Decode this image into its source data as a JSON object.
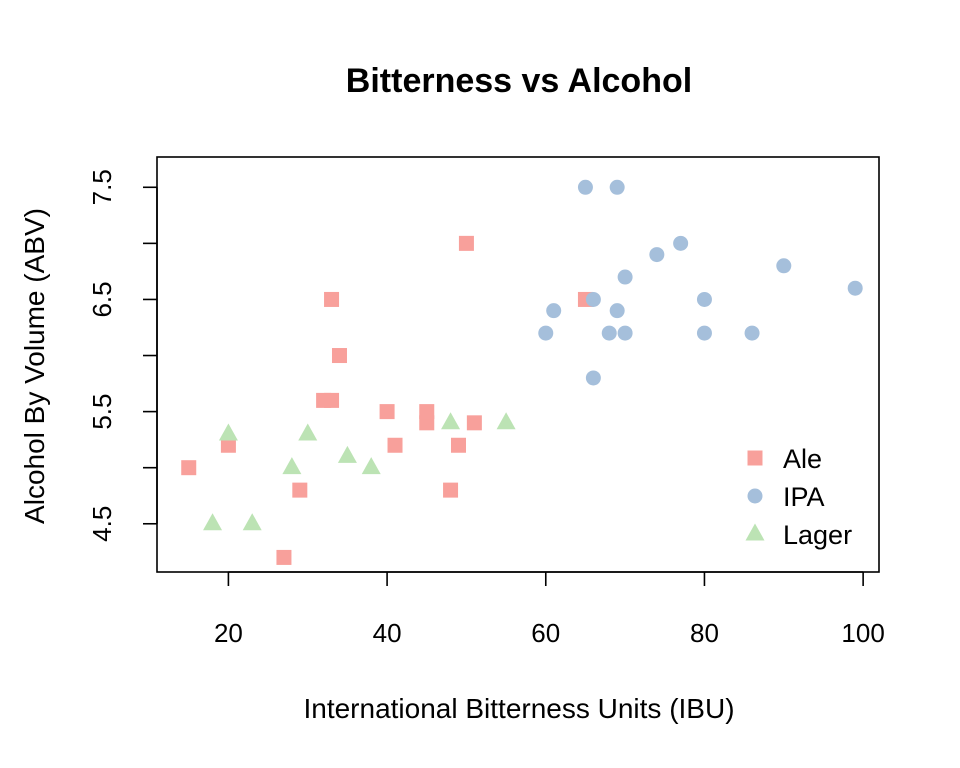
{
  "chart_data": {
    "type": "scatter",
    "title": "Bitterness vs Alcohol",
    "xlabel": "International Bitterness Units (IBU)",
    "ylabel": "Alcohol By Volume (ABV)",
    "xlim": [
      11,
      102
    ],
    "ylim": [
      4.07,
      7.77
    ],
    "x_ticks": [
      20,
      40,
      60,
      80,
      100
    ],
    "y_ticks": [
      4.5,
      5.0,
      5.5,
      6.0,
      6.5,
      7.0,
      7.5
    ],
    "y_tick_labels": [
      "4.5",
      "",
      "5.5",
      "",
      "6.5",
      "",
      "7.5"
    ],
    "grid": false,
    "legend_position": "bottom-right",
    "series": [
      {
        "name": "Ale",
        "marker": "square",
        "color": "#F8A09B",
        "points": [
          {
            "x": 15,
            "y": 5.0
          },
          {
            "x": 20,
            "y": 5.2
          },
          {
            "x": 27,
            "y": 4.2
          },
          {
            "x": 29,
            "y": 4.8
          },
          {
            "x": 32,
            "y": 5.6
          },
          {
            "x": 33,
            "y": 5.6
          },
          {
            "x": 33,
            "y": 6.5
          },
          {
            "x": 34,
            "y": 6.0
          },
          {
            "x": 40,
            "y": 5.5
          },
          {
            "x": 41,
            "y": 5.2
          },
          {
            "x": 45,
            "y": 5.4
          },
          {
            "x": 45,
            "y": 5.5
          },
          {
            "x": 48,
            "y": 4.8
          },
          {
            "x": 49,
            "y": 5.2
          },
          {
            "x": 50,
            "y": 7.0
          },
          {
            "x": 51,
            "y": 5.4
          },
          {
            "x": 65,
            "y": 6.5
          }
        ]
      },
      {
        "name": "IPA",
        "marker": "circle",
        "color": "#A5BFDB",
        "points": [
          {
            "x": 60,
            "y": 6.2
          },
          {
            "x": 61,
            "y": 6.4
          },
          {
            "x": 65,
            "y": 7.5
          },
          {
            "x": 66,
            "y": 6.5
          },
          {
            "x": 66,
            "y": 5.8
          },
          {
            "x": 68,
            "y": 6.2
          },
          {
            "x": 69,
            "y": 7.5
          },
          {
            "x": 69,
            "y": 6.4
          },
          {
            "x": 70,
            "y": 6.7
          },
          {
            "x": 70,
            "y": 6.2
          },
          {
            "x": 74,
            "y": 6.9
          },
          {
            "x": 77,
            "y": 7.0
          },
          {
            "x": 80,
            "y": 6.5
          },
          {
            "x": 80,
            "y": 6.2
          },
          {
            "x": 86,
            "y": 6.2
          },
          {
            "x": 90,
            "y": 6.8
          },
          {
            "x": 99,
            "y": 6.6
          }
        ]
      },
      {
        "name": "Lager",
        "marker": "triangle",
        "color": "#BCE3B4",
        "points": [
          {
            "x": 18,
            "y": 4.5
          },
          {
            "x": 20,
            "y": 5.3
          },
          {
            "x": 23,
            "y": 4.5
          },
          {
            "x": 28,
            "y": 5.0
          },
          {
            "x": 30,
            "y": 5.3
          },
          {
            "x": 35,
            "y": 5.1
          },
          {
            "x": 38,
            "y": 5.0
          },
          {
            "x": 48,
            "y": 5.4
          },
          {
            "x": 55,
            "y": 5.4
          }
        ]
      }
    ]
  }
}
